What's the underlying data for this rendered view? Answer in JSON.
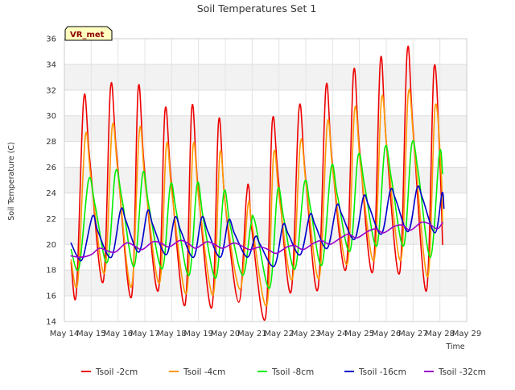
{
  "chart_data": {
    "type": "line",
    "title": "Soil Temperatures Set 1",
    "xlabel": "Time",
    "ylabel": "Soil Temperature (C)",
    "station_label": "VR_met",
    "xlim": [
      14,
      29
    ],
    "ylim": [
      14,
      36
    ],
    "x_ticks": [
      {
        "value": 14,
        "label": "May 14"
      },
      {
        "value": 15,
        "label": "May 15"
      },
      {
        "value": 16,
        "label": "May 16"
      },
      {
        "value": 17,
        "label": "May 17"
      },
      {
        "value": 18,
        "label": "May 18"
      },
      {
        "value": 19,
        "label": "May 19"
      },
      {
        "value": 20,
        "label": "May 20"
      },
      {
        "value": 21,
        "label": "May 21"
      },
      {
        "value": 22,
        "label": "May 22"
      },
      {
        "value": 23,
        "label": "May 23"
      },
      {
        "value": 24,
        "label": "May 24"
      },
      {
        "value": 25,
        "label": "May 25"
      },
      {
        "value": 26,
        "label": "May 26"
      },
      {
        "value": 27,
        "label": "May 27"
      },
      {
        "value": 28,
        "label": "May 28"
      },
      {
        "value": 29,
        "label": "May 29"
      }
    ],
    "y_ticks": [
      14,
      16,
      18,
      20,
      22,
      24,
      26,
      28,
      30,
      32,
      34,
      36
    ],
    "grid": true,
    "background_bands": true,
    "legend_position": "bottom",
    "series": [
      {
        "name": "Tsoil -2cm",
        "color": "#ee0000",
        "points": [
          [
            14.25,
            18.6
          ],
          [
            14.45,
            16.3
          ],
          [
            14.72,
            31.3
          ],
          [
            14.95,
            26.5
          ],
          [
            15.45,
            17.1
          ],
          [
            15.72,
            32.2
          ],
          [
            15.95,
            27.0
          ],
          [
            16.5,
            15.9
          ],
          [
            16.75,
            32.1
          ],
          [
            16.98,
            26.0
          ],
          [
            17.5,
            16.4
          ],
          [
            17.75,
            30.4
          ],
          [
            17.98,
            25.0
          ],
          [
            18.5,
            15.3
          ],
          [
            18.75,
            30.6
          ],
          [
            18.98,
            24.5
          ],
          [
            19.5,
            15.1
          ],
          [
            19.75,
            29.6
          ],
          [
            19.98,
            23.5
          ],
          [
            20.5,
            15.5
          ],
          [
            20.78,
            23.5
          ],
          [
            20.88,
            24.4
          ],
          [
            21.0,
            21.0
          ],
          [
            21.5,
            14.3
          ],
          [
            21.75,
            29.5
          ],
          [
            21.98,
            25.0
          ],
          [
            22.45,
            16.3
          ],
          [
            22.75,
            30.6
          ],
          [
            22.98,
            25.5
          ],
          [
            23.45,
            16.5
          ],
          [
            23.75,
            32.2
          ],
          [
            23.98,
            26.5
          ],
          [
            24.5,
            18.1
          ],
          [
            24.78,
            33.4
          ],
          [
            25.0,
            27.5
          ],
          [
            25.5,
            17.9
          ],
          [
            25.78,
            34.3
          ],
          [
            26.0,
            28.0
          ],
          [
            26.5,
            17.8
          ],
          [
            26.78,
            35.0
          ],
          [
            27.0,
            29.0
          ],
          [
            27.5,
            16.4
          ],
          [
            27.78,
            33.7
          ],
          [
            28.0,
            26.5
          ],
          [
            28.1,
            20.0
          ]
        ]
      },
      {
        "name": "Tsoil -4cm",
        "color": "#ff9900",
        "points": [
          [
            14.25,
            18.8
          ],
          [
            14.5,
            17.1
          ],
          [
            14.78,
            28.4
          ],
          [
            15.0,
            25.0
          ],
          [
            15.5,
            17.8
          ],
          [
            15.78,
            29.1
          ],
          [
            16.0,
            25.5
          ],
          [
            16.5,
            16.7
          ],
          [
            16.8,
            28.9
          ],
          [
            17.02,
            24.6
          ],
          [
            17.55,
            17.0
          ],
          [
            17.8,
            27.7
          ],
          [
            18.02,
            23.8
          ],
          [
            18.55,
            16.2
          ],
          [
            18.8,
            27.7
          ],
          [
            19.02,
            23.4
          ],
          [
            19.55,
            16.1
          ],
          [
            19.8,
            27.1
          ],
          [
            20.02,
            22.7
          ],
          [
            20.55,
            16.5
          ],
          [
            20.85,
            23.1
          ],
          [
            21.0,
            21.5
          ],
          [
            21.55,
            15.3
          ],
          [
            21.8,
            27.0
          ],
          [
            22.02,
            23.5
          ],
          [
            22.5,
            17.3
          ],
          [
            22.8,
            27.9
          ],
          [
            23.02,
            24.5
          ],
          [
            23.5,
            17.4
          ],
          [
            23.8,
            29.4
          ],
          [
            24.02,
            25.5
          ],
          [
            24.55,
            18.5
          ],
          [
            24.82,
            30.5
          ],
          [
            25.05,
            26.0
          ],
          [
            25.55,
            18.8
          ],
          [
            25.82,
            31.3
          ],
          [
            26.05,
            27.0
          ],
          [
            26.55,
            18.8
          ],
          [
            26.82,
            31.7
          ],
          [
            27.05,
            27.5
          ],
          [
            27.55,
            17.5
          ],
          [
            27.82,
            30.7
          ],
          [
            28.05,
            25.5
          ],
          [
            28.1,
            21.5
          ]
        ]
      },
      {
        "name": "Tsoil -8cm",
        "color": "#00ee00",
        "points": [
          [
            14.25,
            19.6
          ],
          [
            14.55,
            18.2
          ],
          [
            14.9,
            25.0
          ],
          [
            15.15,
            23.0
          ],
          [
            15.6,
            18.6
          ],
          [
            15.9,
            25.6
          ],
          [
            16.15,
            23.5
          ],
          [
            16.6,
            18.3
          ],
          [
            16.92,
            25.5
          ],
          [
            17.15,
            23.0
          ],
          [
            17.65,
            18.1
          ],
          [
            17.95,
            24.6
          ],
          [
            18.18,
            22.5
          ],
          [
            18.65,
            17.6
          ],
          [
            18.95,
            24.7
          ],
          [
            19.18,
            22.0
          ],
          [
            19.65,
            17.4
          ],
          [
            19.95,
            24.1
          ],
          [
            20.18,
            21.5
          ],
          [
            20.65,
            17.6
          ],
          [
            20.95,
            21.5
          ],
          [
            21.1,
            21.8
          ],
          [
            21.65,
            16.6
          ],
          [
            21.95,
            24.2
          ],
          [
            22.18,
            22.0
          ],
          [
            22.6,
            18.1
          ],
          [
            22.95,
            24.8
          ],
          [
            23.18,
            22.8
          ],
          [
            23.6,
            18.4
          ],
          [
            23.95,
            26.0
          ],
          [
            24.18,
            23.8
          ],
          [
            24.65,
            19.5
          ],
          [
            24.95,
            26.9
          ],
          [
            25.2,
            24.5
          ],
          [
            25.65,
            19.9
          ],
          [
            25.95,
            27.5
          ],
          [
            26.2,
            25.0
          ],
          [
            26.65,
            19.9
          ],
          [
            26.95,
            27.8
          ],
          [
            27.2,
            25.5
          ],
          [
            27.65,
            19.0
          ],
          [
            27.98,
            27.1
          ],
          [
            28.1,
            25.5
          ]
        ]
      },
      {
        "name": "Tsoil -16cm",
        "color": "#0000cc",
        "points": [
          [
            14.25,
            20.1
          ],
          [
            14.5,
            19.0
          ],
          [
            14.7,
            19.0
          ],
          [
            15.05,
            22.2
          ],
          [
            15.25,
            21.0
          ],
          [
            15.75,
            19.0
          ],
          [
            16.1,
            22.7
          ],
          [
            16.3,
            21.8
          ],
          [
            16.78,
            19.4
          ],
          [
            17.1,
            22.6
          ],
          [
            17.3,
            21.5
          ],
          [
            17.8,
            19.2
          ],
          [
            18.12,
            22.1
          ],
          [
            18.35,
            21.0
          ],
          [
            18.82,
            19.0
          ],
          [
            19.12,
            22.1
          ],
          [
            19.35,
            21.0
          ],
          [
            19.82,
            19.0
          ],
          [
            20.12,
            21.9
          ],
          [
            20.35,
            20.8
          ],
          [
            20.82,
            19.0
          ],
          [
            21.12,
            20.6
          ],
          [
            21.3,
            20.0
          ],
          [
            21.82,
            18.3
          ],
          [
            22.15,
            21.5
          ],
          [
            22.35,
            20.8
          ],
          [
            22.8,
            19.2
          ],
          [
            23.15,
            22.3
          ],
          [
            23.35,
            21.5
          ],
          [
            23.8,
            19.7
          ],
          [
            24.15,
            23.0
          ],
          [
            24.35,
            22.3
          ],
          [
            24.82,
            20.4
          ],
          [
            25.15,
            23.7
          ],
          [
            25.35,
            23.0
          ],
          [
            25.82,
            20.8
          ],
          [
            26.15,
            24.2
          ],
          [
            26.35,
            23.5
          ],
          [
            26.82,
            21.0
          ],
          [
            27.15,
            24.4
          ],
          [
            27.35,
            23.6
          ],
          [
            27.82,
            20.9
          ],
          [
            28.08,
            24.0
          ],
          [
            28.15,
            22.8
          ]
        ]
      },
      {
        "name": "Tsoil -32cm",
        "color": "#9900cc",
        "points": [
          [
            14.25,
            19.1
          ],
          [
            14.6,
            19.0
          ],
          [
            15.0,
            19.2
          ],
          [
            15.3,
            19.7
          ],
          [
            15.6,
            19.5
          ],
          [
            15.9,
            19.4
          ],
          [
            16.3,
            20.1
          ],
          [
            16.6,
            19.9
          ],
          [
            16.9,
            19.6
          ],
          [
            17.3,
            20.2
          ],
          [
            17.6,
            20.1
          ],
          [
            17.9,
            19.8
          ],
          [
            18.3,
            20.3
          ],
          [
            18.6,
            20.1
          ],
          [
            18.9,
            19.7
          ],
          [
            19.3,
            20.2
          ],
          [
            19.6,
            20.0
          ],
          [
            19.9,
            19.7
          ],
          [
            20.3,
            20.1
          ],
          [
            20.6,
            19.9
          ],
          [
            20.9,
            19.6
          ],
          [
            21.3,
            19.8
          ],
          [
            21.6,
            19.6
          ],
          [
            21.9,
            19.3
          ],
          [
            22.3,
            19.8
          ],
          [
            22.6,
            19.9
          ],
          [
            22.9,
            19.6
          ],
          [
            23.3,
            20.1
          ],
          [
            23.6,
            20.3
          ],
          [
            23.9,
            20.0
          ],
          [
            24.3,
            20.5
          ],
          [
            24.6,
            20.8
          ],
          [
            24.9,
            20.5
          ],
          [
            25.3,
            21.0
          ],
          [
            25.6,
            21.2
          ],
          [
            25.9,
            20.9
          ],
          [
            26.3,
            21.4
          ],
          [
            26.6,
            21.5
          ],
          [
            26.9,
            21.1
          ],
          [
            27.3,
            21.7
          ],
          [
            27.6,
            21.6
          ],
          [
            27.9,
            21.2
          ],
          [
            28.1,
            21.7
          ]
        ]
      }
    ]
  }
}
